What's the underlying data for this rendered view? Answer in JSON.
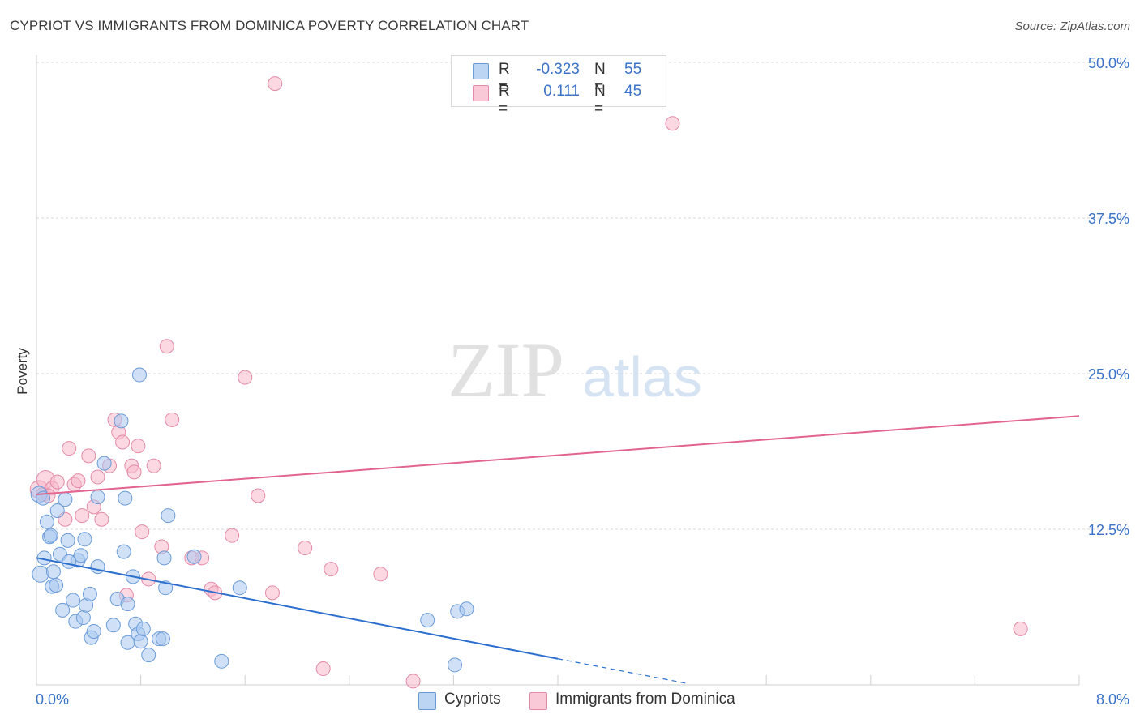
{
  "title": "CYPRIOT VS IMMIGRANTS FROM DOMINICA POVERTY CORRELATION CHART",
  "source": "Source: ZipAtlas.com",
  "watermark": {
    "zip": "ZIP",
    "atlas": "atlas"
  },
  "legend_top": {
    "rows": [
      {
        "r_label": "R =",
        "r_value": "-0.323",
        "n_label": "N =",
        "n_value": "55"
      },
      {
        "r_label": "R =",
        "r_value": "0.111",
        "n_label": "N =",
        "n_value": "45"
      }
    ]
  },
  "colors": {
    "blue_fill": "#a9c9f0",
    "blue_stroke": "#6a9bd8",
    "blue_line": "#2c6fce",
    "pink_fill": "#f7b8cb",
    "pink_stroke": "#e58aa7",
    "pink_line": "#e2648f",
    "value_text": "#3b73c8",
    "grid": "#d9d9d9"
  },
  "chart_data": {
    "type": "scatter",
    "title": "CYPRIOT VS IMMIGRANTS FROM DOMINICA POVERTY CORRELATION CHART",
    "xlabel": "",
    "ylabel": "Poverty",
    "xlim": [
      0,
      8
    ],
    "ylim": [
      0,
      50
    ],
    "x_tick_labels": [
      "0.0%",
      "8.0%"
    ],
    "y_ticks": [
      12.5,
      25,
      37.5,
      50
    ],
    "y_tick_labels": [
      "12.5%",
      "25.0%",
      "37.5%",
      "50.0%"
    ],
    "grid": true,
    "legend": [
      "Cypriots",
      "Immigrants from Dominica"
    ],
    "series": [
      {
        "name": "Cypriots",
        "color": "blue",
        "trend": {
          "x0": 0.0,
          "y0": 10.2,
          "x1": 4.0,
          "y1": 2.1,
          "dash_x1": 5.0,
          "dash_y1": 0.1
        },
        "points": [
          [
            0.02,
            15.3
          ],
          [
            0.05,
            15.0
          ],
          [
            0.03,
            8.9
          ],
          [
            0.08,
            13.1
          ],
          [
            0.1,
            11.9
          ],
          [
            0.06,
            10.2
          ],
          [
            0.13,
            9.1
          ],
          [
            0.16,
            14.0
          ],
          [
            0.18,
            10.5
          ],
          [
            0.22,
            14.9
          ],
          [
            0.24,
            11.6
          ],
          [
            0.12,
            7.9
          ],
          [
            0.28,
            6.8
          ],
          [
            0.3,
            5.1
          ],
          [
            0.32,
            10.0
          ],
          [
            0.34,
            10.4
          ],
          [
            0.36,
            5.4
          ],
          [
            0.37,
            11.7
          ],
          [
            0.38,
            6.4
          ],
          [
            0.41,
            7.3
          ],
          [
            0.42,
            3.8
          ],
          [
            0.44,
            4.3
          ],
          [
            0.47,
            15.1
          ],
          [
            0.47,
            9.5
          ],
          [
            0.52,
            17.8
          ],
          [
            0.59,
            4.8
          ],
          [
            0.62,
            6.9
          ],
          [
            0.65,
            21.2
          ],
          [
            0.67,
            10.7
          ],
          [
            0.68,
            15.0
          ],
          [
            0.7,
            6.5
          ],
          [
            0.7,
            3.4
          ],
          [
            0.74,
            8.7
          ],
          [
            0.76,
            4.9
          ],
          [
            0.78,
            4.1
          ],
          [
            0.8,
            3.5
          ],
          [
            0.82,
            4.5
          ],
          [
            0.86,
            2.4
          ],
          [
            0.94,
            3.7
          ],
          [
            0.97,
            3.7
          ],
          [
            0.98,
            10.2
          ],
          [
            0.99,
            7.8
          ],
          [
            1.01,
            13.6
          ],
          [
            1.21,
            10.3
          ],
          [
            1.42,
            1.9
          ],
          [
            1.56,
            7.8
          ],
          [
            3.0,
            5.2
          ],
          [
            3.21,
            1.6
          ],
          [
            3.23,
            5.9
          ],
          [
            3.3,
            6.1
          ],
          [
            0.2,
            6.0
          ],
          [
            0.25,
            9.9
          ],
          [
            0.15,
            8.0
          ],
          [
            0.79,
            24.9
          ],
          [
            0.11,
            12.0
          ]
        ]
      },
      {
        "name": "Immigrants from Dominica",
        "color": "pink",
        "trend": {
          "x0": 0.0,
          "y0": 15.3,
          "x1": 8.0,
          "y1": 21.6
        },
        "points": [
          [
            0.02,
            15.7
          ],
          [
            0.05,
            15.3
          ],
          [
            0.07,
            16.5
          ],
          [
            0.12,
            15.8
          ],
          [
            0.16,
            16.3
          ],
          [
            0.22,
            13.3
          ],
          [
            0.25,
            19.0
          ],
          [
            0.29,
            16.1
          ],
          [
            0.32,
            16.4
          ],
          [
            0.35,
            13.6
          ],
          [
            0.4,
            18.4
          ],
          [
            0.44,
            14.3
          ],
          [
            0.47,
            16.7
          ],
          [
            0.5,
            13.3
          ],
          [
            0.56,
            17.6
          ],
          [
            0.6,
            21.3
          ],
          [
            0.63,
            20.3
          ],
          [
            0.66,
            19.5
          ],
          [
            0.69,
            7.2
          ],
          [
            0.73,
            17.6
          ],
          [
            0.75,
            17.1
          ],
          [
            0.78,
            19.2
          ],
          [
            0.81,
            12.3
          ],
          [
            0.86,
            8.5
          ],
          [
            0.9,
            17.6
          ],
          [
            0.96,
            11.1
          ],
          [
            1.0,
            27.2
          ],
          [
            1.04,
            21.3
          ],
          [
            1.19,
            10.2
          ],
          [
            1.27,
            10.2
          ],
          [
            1.34,
            7.7
          ],
          [
            1.37,
            7.4
          ],
          [
            1.5,
            12.0
          ],
          [
            1.6,
            24.7
          ],
          [
            1.7,
            15.2
          ],
          [
            1.81,
            7.4
          ],
          [
            1.83,
            48.3
          ],
          [
            2.06,
            11.0
          ],
          [
            2.2,
            1.3
          ],
          [
            2.26,
            9.3
          ],
          [
            2.64,
            8.9
          ],
          [
            2.89,
            0.3
          ],
          [
            4.88,
            45.1
          ],
          [
            7.55,
            4.5
          ],
          [
            0.09,
            15.2
          ]
        ]
      }
    ]
  },
  "legend_bottom": {
    "items": [
      {
        "label": "Cypriots"
      },
      {
        "label": "Immigrants from Dominica"
      }
    ]
  }
}
